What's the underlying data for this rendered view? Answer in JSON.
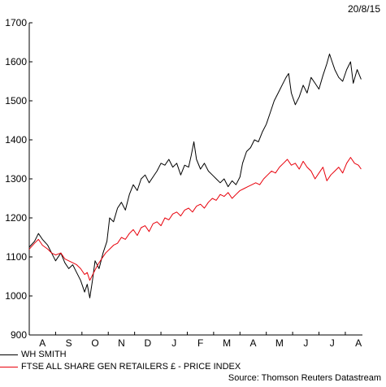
{
  "date_label": "20/8/15",
  "source": "Source: Thomson Reuters Datastream",
  "chart_data": {
    "type": "line",
    "title": "",
    "xlabel": "",
    "ylabel": "",
    "ylim": [
      900,
      1700
    ],
    "yticks": [
      900,
      1000,
      1100,
      1200,
      1300,
      1400,
      1500,
      1600,
      1700
    ],
    "xticks": [
      "A",
      "S",
      "O",
      "N",
      "D",
      "J",
      "F",
      "M",
      "A",
      "M",
      "J",
      "J",
      "A"
    ],
    "grid": false,
    "legend": "bottom-left",
    "x_range": [
      0,
      12.65
    ],
    "series": [
      {
        "name": "WH SMITH",
        "color": "#000000",
        "points": [
          [
            0.0,
            1125
          ],
          [
            0.2,
            1140
          ],
          [
            0.35,
            1160
          ],
          [
            0.5,
            1145
          ],
          [
            0.7,
            1130
          ],
          [
            0.85,
            1110
          ],
          [
            1.0,
            1090
          ],
          [
            1.2,
            1110
          ],
          [
            1.35,
            1085
          ],
          [
            1.5,
            1070
          ],
          [
            1.65,
            1080
          ],
          [
            1.8,
            1060
          ],
          [
            1.95,
            1040
          ],
          [
            2.1,
            1010
          ],
          [
            2.2,
            1030
          ],
          [
            2.3,
            995
          ],
          [
            2.4,
            1040
          ],
          [
            2.5,
            1090
          ],
          [
            2.65,
            1070
          ],
          [
            2.8,
            1110
          ],
          [
            2.95,
            1140
          ],
          [
            3.05,
            1200
          ],
          [
            3.2,
            1190
          ],
          [
            3.35,
            1225
          ],
          [
            3.5,
            1240
          ],
          [
            3.65,
            1220
          ],
          [
            3.8,
            1260
          ],
          [
            3.95,
            1285
          ],
          [
            4.1,
            1270
          ],
          [
            4.25,
            1300
          ],
          [
            4.4,
            1310
          ],
          [
            4.55,
            1290
          ],
          [
            4.7,
            1305
          ],
          [
            4.85,
            1320
          ],
          [
            5.0,
            1340
          ],
          [
            5.15,
            1335
          ],
          [
            5.3,
            1350
          ],
          [
            5.45,
            1330
          ],
          [
            5.6,
            1340
          ],
          [
            5.75,
            1310
          ],
          [
            5.9,
            1335
          ],
          [
            6.05,
            1330
          ],
          [
            6.15,
            1360
          ],
          [
            6.25,
            1395
          ],
          [
            6.35,
            1350
          ],
          [
            6.5,
            1325
          ],
          [
            6.65,
            1340
          ],
          [
            6.8,
            1320
          ],
          [
            6.95,
            1310
          ],
          [
            7.1,
            1300
          ],
          [
            7.25,
            1290
          ],
          [
            7.4,
            1300
          ],
          [
            7.55,
            1280
          ],
          [
            7.7,
            1295
          ],
          [
            7.85,
            1285
          ],
          [
            8.0,
            1305
          ],
          [
            8.1,
            1340
          ],
          [
            8.25,
            1370
          ],
          [
            8.4,
            1380
          ],
          [
            8.55,
            1400
          ],
          [
            8.7,
            1395
          ],
          [
            8.85,
            1420
          ],
          [
            9.0,
            1440
          ],
          [
            9.15,
            1470
          ],
          [
            9.3,
            1500
          ],
          [
            9.45,
            1520
          ],
          [
            9.6,
            1540
          ],
          [
            9.75,
            1560
          ],
          [
            9.85,
            1570
          ],
          [
            9.95,
            1520
          ],
          [
            10.1,
            1490
          ],
          [
            10.25,
            1510
          ],
          [
            10.4,
            1540
          ],
          [
            10.55,
            1520
          ],
          [
            10.7,
            1560
          ],
          [
            10.85,
            1545
          ],
          [
            11.0,
            1530
          ],
          [
            11.15,
            1565
          ],
          [
            11.3,
            1595
          ],
          [
            11.4,
            1620
          ],
          [
            11.5,
            1600
          ],
          [
            11.6,
            1580
          ],
          [
            11.75,
            1560
          ],
          [
            11.9,
            1550
          ],
          [
            12.05,
            1580
          ],
          [
            12.2,
            1600
          ],
          [
            12.3,
            1545
          ],
          [
            12.45,
            1580
          ],
          [
            12.6,
            1555
          ]
        ]
      },
      {
        "name": "FTSE ALL SHARE GEN RETAILERS £ - PRICE INDEX",
        "color": "#e8000b",
        "points": [
          [
            0.0,
            1120
          ],
          [
            0.2,
            1135
          ],
          [
            0.35,
            1145
          ],
          [
            0.5,
            1130
          ],
          [
            0.7,
            1120
          ],
          [
            0.85,
            1110
          ],
          [
            1.0,
            1105
          ],
          [
            1.2,
            1110
          ],
          [
            1.35,
            1095
          ],
          [
            1.5,
            1090
          ],
          [
            1.65,
            1085
          ],
          [
            1.8,
            1080
          ],
          [
            1.95,
            1070
          ],
          [
            2.1,
            1055
          ],
          [
            2.2,
            1060
          ],
          [
            2.3,
            1040
          ],
          [
            2.45,
            1060
          ],
          [
            2.6,
            1080
          ],
          [
            2.75,
            1095
          ],
          [
            2.9,
            1110
          ],
          [
            3.05,
            1120
          ],
          [
            3.2,
            1130
          ],
          [
            3.35,
            1135
          ],
          [
            3.5,
            1150
          ],
          [
            3.65,
            1145
          ],
          [
            3.8,
            1160
          ],
          [
            3.95,
            1170
          ],
          [
            4.1,
            1155
          ],
          [
            4.25,
            1175
          ],
          [
            4.4,
            1180
          ],
          [
            4.55,
            1165
          ],
          [
            4.7,
            1185
          ],
          [
            4.85,
            1190
          ],
          [
            5.0,
            1180
          ],
          [
            5.15,
            1200
          ],
          [
            5.3,
            1195
          ],
          [
            5.45,
            1210
          ],
          [
            5.6,
            1215
          ],
          [
            5.75,
            1205
          ],
          [
            5.9,
            1220
          ],
          [
            6.05,
            1225
          ],
          [
            6.2,
            1215
          ],
          [
            6.35,
            1230
          ],
          [
            6.5,
            1235
          ],
          [
            6.65,
            1225
          ],
          [
            6.8,
            1240
          ],
          [
            6.95,
            1250
          ],
          [
            7.1,
            1245
          ],
          [
            7.25,
            1260
          ],
          [
            7.4,
            1255
          ],
          [
            7.55,
            1265
          ],
          [
            7.7,
            1250
          ],
          [
            7.85,
            1260
          ],
          [
            8.0,
            1270
          ],
          [
            8.15,
            1275
          ],
          [
            8.3,
            1280
          ],
          [
            8.45,
            1285
          ],
          [
            8.6,
            1290
          ],
          [
            8.75,
            1285
          ],
          [
            8.9,
            1300
          ],
          [
            9.05,
            1310
          ],
          [
            9.2,
            1320
          ],
          [
            9.35,
            1315
          ],
          [
            9.5,
            1330
          ],
          [
            9.65,
            1340
          ],
          [
            9.8,
            1350
          ],
          [
            9.95,
            1335
          ],
          [
            10.1,
            1340
          ],
          [
            10.25,
            1325
          ],
          [
            10.4,
            1345
          ],
          [
            10.55,
            1330
          ],
          [
            10.7,
            1320
          ],
          [
            10.85,
            1300
          ],
          [
            11.0,
            1315
          ],
          [
            11.15,
            1330
          ],
          [
            11.3,
            1295
          ],
          [
            11.45,
            1310
          ],
          [
            11.6,
            1320
          ],
          [
            11.75,
            1330
          ],
          [
            11.9,
            1315
          ],
          [
            12.05,
            1340
          ],
          [
            12.2,
            1355
          ],
          [
            12.35,
            1340
          ],
          [
            12.5,
            1335
          ],
          [
            12.6,
            1325
          ]
        ]
      }
    ]
  }
}
